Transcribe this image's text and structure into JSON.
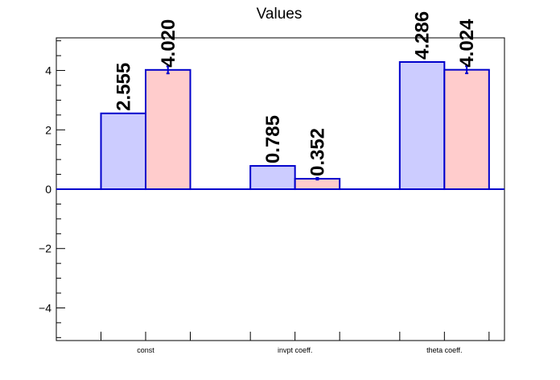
{
  "chart_data": {
    "type": "bar",
    "title": "Values",
    "categories": [
      "const",
      "invpt coeff.",
      "theta coeff."
    ],
    "series": [
      {
        "values": [
          2.555,
          0.785,
          4.286
        ],
        "errors": [
          0,
          0,
          0
        ],
        "color": "#ccccff"
      },
      {
        "values": [
          4.02,
          0.352,
          4.024
        ],
        "errors": [
          0.12,
          0.03,
          0.12
        ],
        "color": "#ffcccc"
      }
    ],
    "data_labels": [
      [
        "2.555",
        "0.785",
        "4.286"
      ],
      [
        "4.020",
        "0.352",
        "4.024"
      ]
    ],
    "yticks": [
      "4",
      "2",
      "0",
      "−2",
      "−4"
    ],
    "ytick_values": [
      4,
      2,
      0,
      -2,
      -4
    ],
    "ylim": [
      -5.1,
      5.1
    ],
    "xlabel": "",
    "ylabel": "",
    "grid": false,
    "bar_edge_color": "#0000cc"
  }
}
